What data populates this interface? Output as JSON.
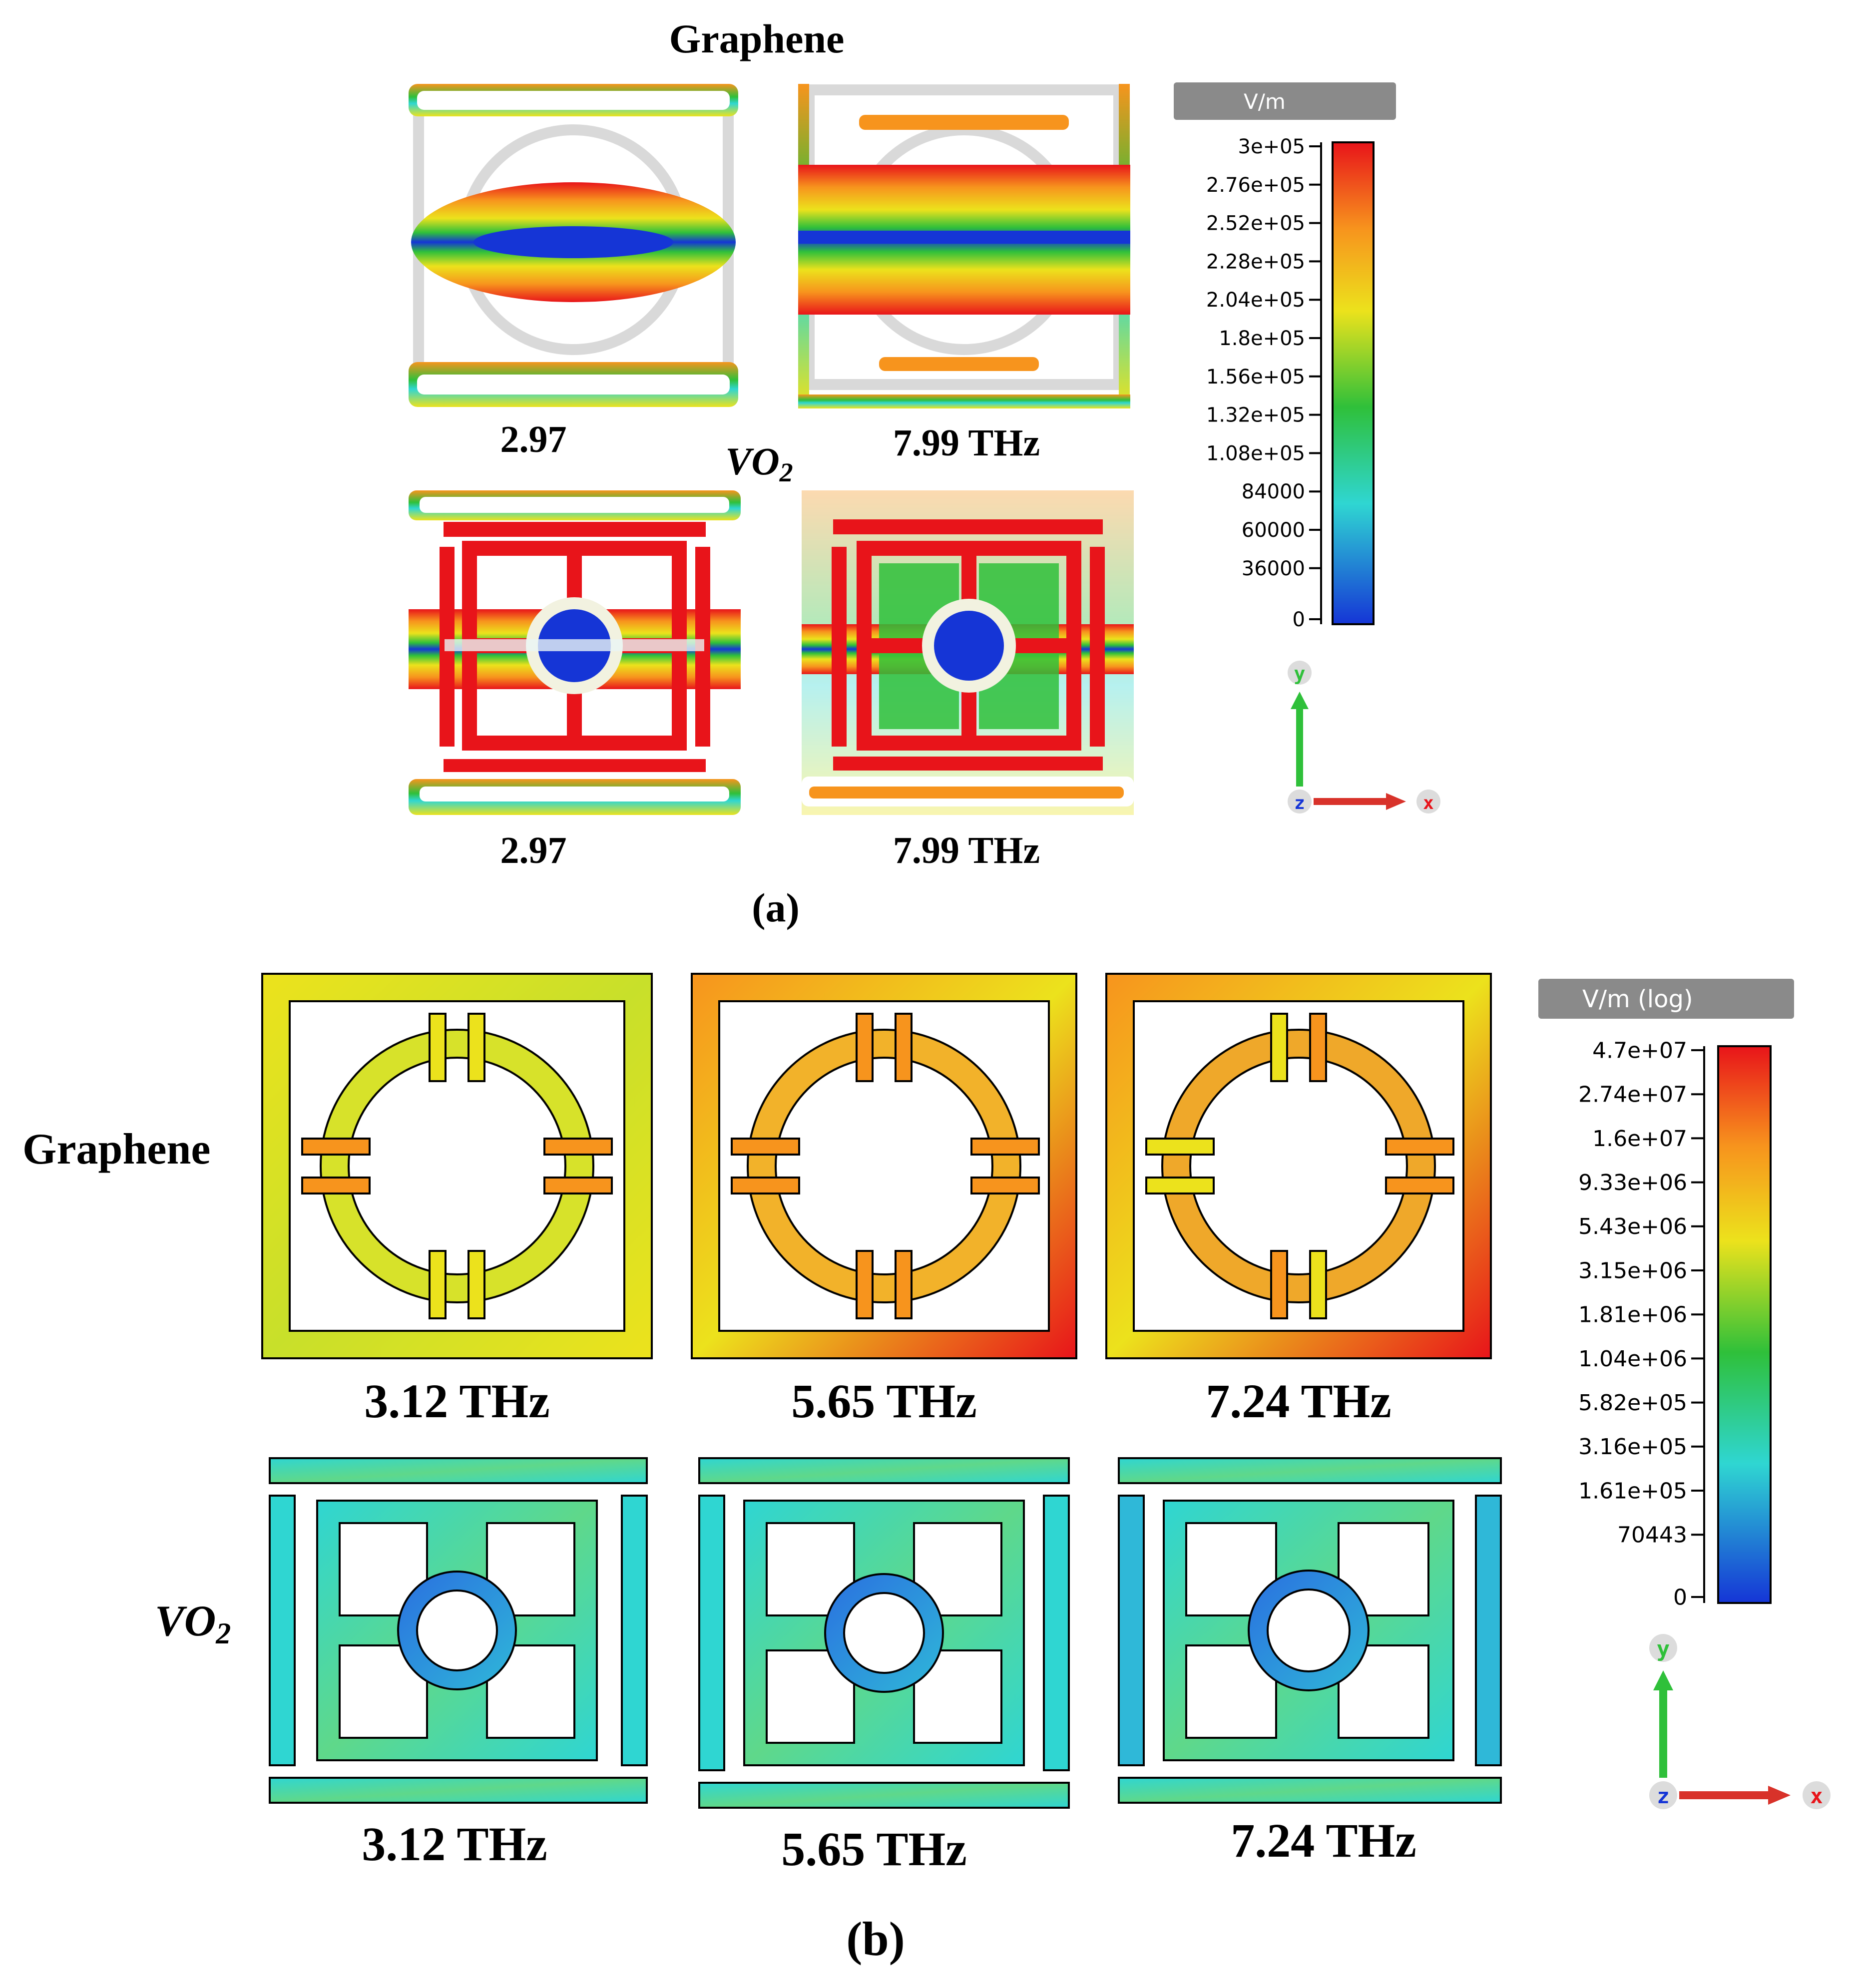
{
  "figure": {
    "panel_a": {
      "graphene_label": "Graphene",
      "vo2_label_main": "VO",
      "vo2_label_sub": "2",
      "labels": [
        "2.97",
        "7.99 THz",
        "2.97",
        "7.99 THz"
      ],
      "caption": "(a)",
      "colorbar": {
        "unit": "V/m",
        "ticks": [
          "3e+05",
          "2.76e+05",
          "2.52e+05",
          "2.28e+05",
          "2.04e+05",
          "1.8e+05",
          "1.56e+05",
          "1.32e+05",
          "1.08e+05",
          "84000",
          "60000",
          "36000",
          "0"
        ]
      },
      "axes": {
        "y": "y",
        "z": "z",
        "x": "x"
      }
    },
    "panel_b": {
      "graphene_label": "Graphene",
      "vo2_label_main": "VO",
      "vo2_label_sub": "2",
      "labels": [
        "3.12 THz",
        "5.65 THz",
        "7.24 THz",
        "3.12 THz",
        "5.65 THz",
        "7.24 THz"
      ],
      "caption": "(b)",
      "colorbar": {
        "unit": "V/m (log)",
        "ticks": [
          "4.7e+07",
          "2.74e+07",
          "1.6e+07",
          "9.33e+06",
          "5.43e+06",
          "3.15e+06",
          "1.81e+06",
          "1.04e+06",
          "5.82e+05",
          "3.16e+05",
          "1.61e+05",
          "70443",
          "0"
        ]
      },
      "axes": {
        "y": "y",
        "z": "z",
        "x": "x"
      }
    },
    "colors": {
      "red": "#e8141a",
      "orange": "#f7941d",
      "yellow": "#ece21c",
      "green": "#2fc03a",
      "cyan": "#2fd6d2",
      "blue": "#1535d6",
      "grey_header": "#8a8a8a"
    }
  }
}
